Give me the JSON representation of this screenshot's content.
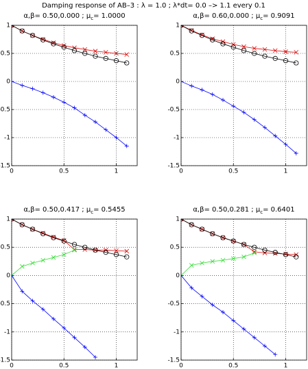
{
  "title": "Damping response of AB–3 : λ = 1.0 ; λ*dt= 0.0 –> 1.1 every 0.1",
  "chart_data": [
    {
      "type": "line",
      "title": [
        "α,β= 0.50,0.000 ; μ",
        "c",
        "= 1.0000"
      ],
      "x": [
        0,
        0.1,
        0.2,
        0.3,
        0.4,
        0.5,
        0.6,
        0.7,
        0.8,
        0.9,
        1.0,
        1.1
      ],
      "xlim": [
        0,
        1.2
      ],
      "ylim": [
        -1.5,
        1
      ],
      "xticks": [
        0,
        0.5,
        1
      ],
      "yticks": [
        -1.5,
        -1,
        -0.5,
        0,
        0.5,
        1
      ],
      "grid": true,
      "series": [
        {
          "color": "#dd0000",
          "marker": "x",
          "values": [
            1,
            0.9,
            0.82,
            0.75,
            0.69,
            0.64,
            0.6,
            0.57,
            0.54,
            0.52,
            0.5,
            0.48
          ]
        },
        {
          "color": "#000000",
          "marker": "o",
          "values": [
            1,
            0.9,
            0.82,
            0.74,
            0.67,
            0.61,
            0.55,
            0.5,
            0.45,
            0.41,
            0.37,
            0.33
          ]
        },
        {
          "color": "#0000ff",
          "marker": "+",
          "values": [
            0,
            -0.07,
            -0.13,
            -0.2,
            -0.28,
            -0.37,
            -0.47,
            -0.6,
            -0.72,
            -0.86,
            -1.0,
            -1.15
          ]
        }
      ]
    },
    {
      "type": "line",
      "title": [
        "α,β= 0.60,0.000 ; μ",
        "c",
        "= 0.9091"
      ],
      "x": [
        0,
        0.1,
        0.2,
        0.3,
        0.4,
        0.5,
        0.6,
        0.7,
        0.8,
        0.9,
        1.0,
        1.1
      ],
      "xlim": [
        0,
        1.2
      ],
      "ylim": [
        -1.5,
        1
      ],
      "xticks": [
        0,
        0.5,
        1
      ],
      "yticks": [
        -1.5,
        -1,
        -0.5,
        0,
        0.5,
        1
      ],
      "grid": true,
      "series": [
        {
          "color": "#dd0000",
          "marker": "x",
          "values": [
            1,
            0.91,
            0.83,
            0.76,
            0.71,
            0.66,
            0.62,
            0.59,
            0.57,
            0.55,
            0.53,
            0.52
          ]
        },
        {
          "color": "#000000",
          "marker": "o",
          "values": [
            1,
            0.9,
            0.82,
            0.74,
            0.67,
            0.61,
            0.55,
            0.5,
            0.45,
            0.41,
            0.37,
            0.33
          ]
        },
        {
          "color": "#0000ff",
          "marker": "+",
          "values": [
            0,
            -0.08,
            -0.15,
            -0.23,
            -0.33,
            -0.44,
            -0.55,
            -0.68,
            -0.82,
            -0.97,
            -1.12,
            -1.28
          ]
        }
      ]
    },
    {
      "type": "line",
      "title": [
        "α,β= 0.50,0.417 ; μ",
        "c",
        "= 0.5455"
      ],
      "x": [
        0,
        0.1,
        0.2,
        0.3,
        0.4,
        0.5,
        0.6,
        0.7,
        0.8,
        0.9,
        1.0,
        1.1
      ],
      "xlim": [
        0,
        1.2
      ],
      "ylim": [
        -1.5,
        1
      ],
      "xticks": [
        0,
        0.5,
        1
      ],
      "yticks": [
        -1.5,
        -1,
        -0.5,
        0,
        0.5,
        1
      ],
      "grid": true,
      "series": [
        {
          "color": "#dd0000",
          "marker": "x",
          "values": [
            1,
            0.9,
            0.82,
            0.75,
            0.68,
            0.62,
            0.46,
            0.46,
            0.45,
            0.45,
            0.44,
            0.43
          ]
        },
        {
          "color": "#000000",
          "marker": "o",
          "values": [
            1,
            0.9,
            0.82,
            0.74,
            0.67,
            0.61,
            0.55,
            0.5,
            0.45,
            0.41,
            0.37,
            0.33
          ]
        },
        {
          "color": "#33dd33",
          "marker": "x",
          "values": [
            0,
            0.16,
            0.22,
            0.27,
            0.32,
            0.37,
            0.45,
            null,
            null,
            null,
            null,
            null
          ]
        },
        {
          "color": "#0000ff",
          "marker": "+",
          "values": [
            0,
            -0.28,
            -0.45,
            -0.6,
            -0.77,
            -0.93,
            -1.1,
            -1.27,
            -1.45,
            null,
            null,
            null
          ]
        }
      ]
    },
    {
      "type": "line",
      "title": [
        "α,β= 0.50,0.281 ; μ",
        "c",
        "= 0.6401"
      ],
      "x": [
        0,
        0.1,
        0.2,
        0.3,
        0.4,
        0.5,
        0.6,
        0.7,
        0.8,
        0.9,
        1.0,
        1.1
      ],
      "xlim": [
        0,
        1.2
      ],
      "ylim": [
        -1.5,
        1
      ],
      "xticks": [
        0,
        0.5,
        1
      ],
      "yticks": [
        -1.5,
        -1,
        -0.5,
        0,
        0.5,
        1
      ],
      "grid": true,
      "series": [
        {
          "color": "#dd0000",
          "marker": "x",
          "values": [
            1,
            0.9,
            0.82,
            0.74,
            0.67,
            0.61,
            0.55,
            0.42,
            0.4,
            0.39,
            0.38,
            0.37
          ]
        },
        {
          "color": "#000000",
          "marker": "o",
          "values": [
            1,
            0.9,
            0.82,
            0.74,
            0.67,
            0.61,
            0.55,
            0.5,
            0.45,
            0.41,
            0.37,
            0.33
          ]
        },
        {
          "color": "#33dd33",
          "marker": "x",
          "values": [
            0,
            0.18,
            0.22,
            0.25,
            0.27,
            0.3,
            0.33,
            0.4,
            null,
            null,
            null,
            null
          ]
        },
        {
          "color": "#0000ff",
          "marker": "+",
          "values": [
            0,
            -0.22,
            -0.37,
            -0.52,
            -0.65,
            -0.8,
            -0.95,
            -1.1,
            -1.25,
            -1.4,
            null,
            null
          ]
        }
      ]
    }
  ]
}
